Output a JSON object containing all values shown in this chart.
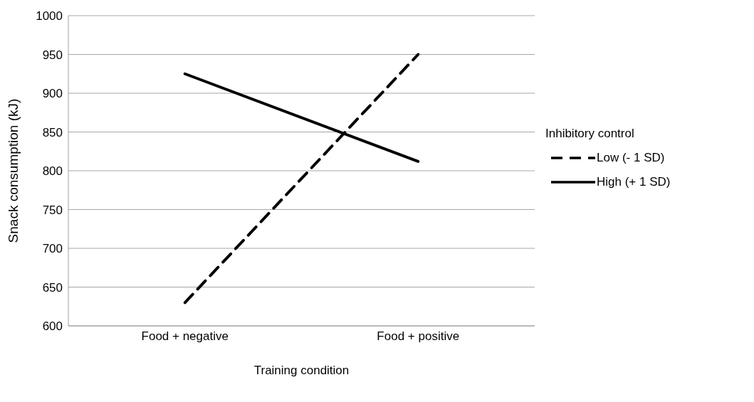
{
  "chart_data": {
    "type": "line",
    "xlabel": "Training condition",
    "ylabel": "Snack consumption (kJ)",
    "legend_title": "Inhibitory control",
    "categories": [
      "Food + negative",
      "Food + positive"
    ],
    "series": [
      {
        "name": "Low (- 1 SD)",
        "color": "#000000",
        "values": [
          630,
          950
        ],
        "line_style": "dashed"
      },
      {
        "name": "High (+ 1 SD)",
        "color": "#000000",
        "values": [
          925,
          812
        ],
        "line_style": "solid"
      }
    ],
    "ylim": [
      600,
      1000
    ],
    "yticks": [
      600,
      650,
      700,
      750,
      800,
      850,
      900,
      950,
      1000
    ],
    "grid": "y",
    "legend": "right",
    "marker": "none"
  }
}
